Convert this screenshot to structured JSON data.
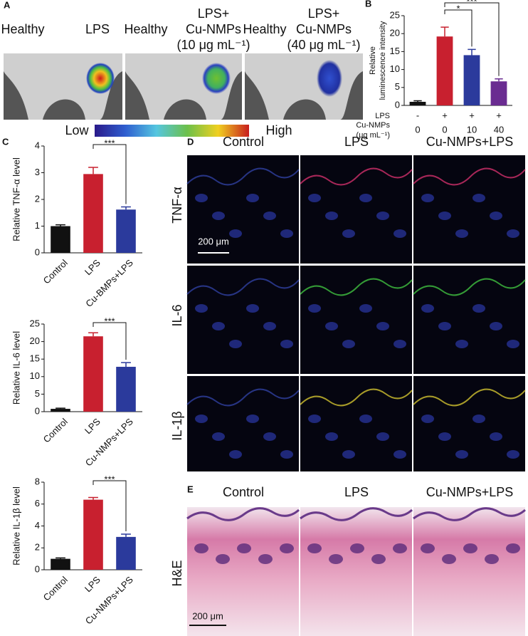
{
  "panel_labels": [
    "A",
    "B",
    "C",
    "D",
    "E"
  ],
  "panel_a": {
    "labels": [
      "Healthy",
      "LPS",
      "Healthy",
      "LPS+",
      "Cu-NMPs",
      "(10 μg mL⁻¹)",
      "Healthy",
      "LPS+",
      "Cu-NMPs",
      "(40 μg mL⁻¹)"
    ],
    "colorbar": [
      "Low",
      "High"
    ]
  },
  "chart_data": [
    {
      "type": "bar",
      "ylabel": [
        "Relative",
        "luminescence intensity"
      ],
      "categories": [
        "0",
        "0",
        "10",
        "40"
      ],
      "lps": [
        "-",
        "+",
        "+",
        "+"
      ],
      "row_labels": [
        "LPS",
        "Cu-NMPs",
        "(μg mL⁻¹)"
      ],
      "values": [
        1,
        19.2,
        14,
        6.7
      ],
      "errors": [
        0.3,
        2.6,
        1.6,
        0.7
      ],
      "colors": [
        "#111111",
        "#c8202f",
        "#2b3a9c",
        "#6a2c91"
      ],
      "ylim": [
        0,
        25
      ],
      "yticks": [
        0,
        5,
        10,
        15,
        20,
        25
      ],
      "annotations": [
        "*",
        "***"
      ]
    },
    {
      "type": "bar",
      "ylabel": [
        "Relative TNF-α level"
      ],
      "categories": [
        "Control",
        "LPS",
        "Cu-BMPs+LPS"
      ],
      "values": [
        1,
        2.95,
        1.62
      ],
      "errors": [
        0.05,
        0.25,
        0.1
      ],
      "colors": [
        "#111111",
        "#c8202f",
        "#2b3a9c"
      ],
      "ylim": [
        0,
        4
      ],
      "yticks": [
        0,
        1,
        2,
        3,
        4
      ],
      "annotations": [
        "***"
      ]
    },
    {
      "type": "bar",
      "ylabel": [
        "Relative IL-6 level"
      ],
      "categories": [
        "Control",
        "LPS",
        "Cu-NMPs+LPS"
      ],
      "values": [
        0.8,
        21.5,
        12.8
      ],
      "errors": [
        0.2,
        1,
        1.2
      ],
      "colors": [
        "#111111",
        "#c8202f",
        "#2b3a9c"
      ],
      "ylim": [
        0,
        25
      ],
      "yticks": [
        0,
        5,
        10,
        15,
        20,
        25
      ],
      "annotations": [
        "***"
      ]
    },
    {
      "type": "bar",
      "ylabel": [
        "Relative IL-1β level"
      ],
      "categories": [
        "Control",
        "LPS",
        "Cu-NMPs+LPS"
      ],
      "values": [
        1,
        6.4,
        3
      ],
      "errors": [
        0.08,
        0.2,
        0.25
      ],
      "colors": [
        "#111111",
        "#c8202f",
        "#2b3a9c"
      ],
      "ylim": [
        0,
        8
      ],
      "yticks": [
        0,
        2,
        4,
        6,
        8
      ],
      "annotations": [
        "***"
      ]
    }
  ],
  "panel_d": {
    "columns": [
      "Control",
      "LPS",
      "Cu-NMPs+LPS"
    ],
    "rows": [
      "TNF-α",
      "IL-6",
      "IL-1β"
    ],
    "scale_bar": "200 μm"
  },
  "panel_e": {
    "columns": [
      "Control",
      "LPS",
      "Cu-NMPs+LPS"
    ],
    "row": "H&E",
    "scale_bar": "200 μm"
  }
}
